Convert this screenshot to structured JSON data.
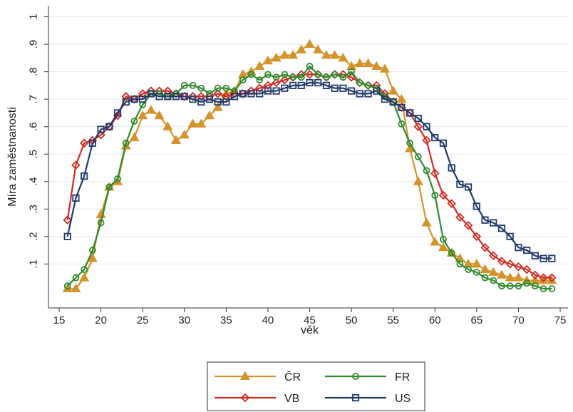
{
  "chart_data": {
    "type": "line",
    "xlabel": "věk",
    "ylabel": "Míra zaměstnanosti",
    "xlim": [
      15,
      75
    ],
    "ylim": [
      0,
      1
    ],
    "x_ticks": [
      "15",
      "20",
      "25",
      "30",
      "35",
      "40",
      "45",
      "50",
      "55",
      "60",
      "65",
      "70",
      "75"
    ],
    "y_ticks": [
      ".1",
      ".2",
      ".3",
      ".4",
      ".5",
      ".6",
      ".7",
      ".8",
      ".9",
      "1"
    ],
    "grid": true,
    "legend_position": "bottom",
    "series": [
      {
        "name": "ČR",
        "color": "#d4922a",
        "marker": "triangle",
        "x": [
          16,
          17,
          18,
          19,
          20,
          21,
          22,
          23,
          24,
          25,
          26,
          27,
          28,
          29,
          30,
          31,
          32,
          33,
          34,
          35,
          36,
          37,
          38,
          39,
          40,
          41,
          42,
          43,
          44,
          45,
          46,
          47,
          48,
          49,
          50,
          51,
          52,
          53,
          54,
          55,
          56,
          57,
          58,
          59,
          60,
          61,
          62,
          63,
          64,
          65,
          66,
          67,
          68,
          69,
          70,
          71,
          72,
          73,
          74
        ],
        "values": [
          0.01,
          0.01,
          0.05,
          0.12,
          0.28,
          0.38,
          0.4,
          0.53,
          0.56,
          0.64,
          0.66,
          0.64,
          0.6,
          0.55,
          0.57,
          0.61,
          0.61,
          0.64,
          0.67,
          0.72,
          0.73,
          0.79,
          0.8,
          0.82,
          0.84,
          0.85,
          0.86,
          0.86,
          0.88,
          0.9,
          0.88,
          0.86,
          0.86,
          0.85,
          0.82,
          0.83,
          0.83,
          0.82,
          0.81,
          0.73,
          0.7,
          0.52,
          0.4,
          0.25,
          0.18,
          0.16,
          0.14,
          0.12,
          0.1,
          0.1,
          0.08,
          0.07,
          0.06,
          0.05,
          0.05,
          0.04,
          0.04,
          0.04,
          0.04
        ]
      },
      {
        "name": "VB",
        "color": "#cf2c24",
        "marker": "diamond",
        "x": [
          16,
          17,
          18,
          19,
          20,
          21,
          22,
          23,
          24,
          25,
          26,
          27,
          28,
          29,
          30,
          31,
          32,
          33,
          34,
          35,
          36,
          37,
          38,
          39,
          40,
          41,
          42,
          43,
          44,
          45,
          46,
          47,
          48,
          49,
          50,
          51,
          52,
          53,
          54,
          55,
          56,
          57,
          58,
          59,
          60,
          61,
          62,
          63,
          64,
          65,
          66,
          67,
          68,
          69,
          70,
          71,
          72,
          73,
          74
        ],
        "values": [
          0.26,
          0.46,
          0.54,
          0.55,
          0.57,
          0.6,
          0.64,
          0.71,
          0.7,
          0.72,
          0.73,
          0.73,
          0.73,
          0.72,
          0.71,
          0.71,
          0.71,
          0.71,
          0.72,
          0.71,
          0.72,
          0.72,
          0.73,
          0.74,
          0.75,
          0.76,
          0.77,
          0.78,
          0.79,
          0.79,
          0.79,
          0.78,
          0.79,
          0.79,
          0.78,
          0.76,
          0.75,
          0.75,
          0.72,
          0.69,
          0.67,
          0.65,
          0.6,
          0.55,
          0.43,
          0.35,
          0.32,
          0.27,
          0.24,
          0.2,
          0.16,
          0.13,
          0.11,
          0.1,
          0.09,
          0.08,
          0.06,
          0.05,
          0.05
        ]
      },
      {
        "name": "FR",
        "color": "#2e8b2e",
        "marker": "circle",
        "x": [
          16,
          17,
          18,
          19,
          20,
          21,
          22,
          23,
          24,
          25,
          26,
          27,
          28,
          29,
          30,
          31,
          32,
          33,
          34,
          35,
          36,
          37,
          38,
          39,
          40,
          41,
          42,
          43,
          44,
          45,
          46,
          47,
          48,
          49,
          50,
          51,
          52,
          53,
          54,
          55,
          56,
          57,
          58,
          59,
          60,
          61,
          62,
          63,
          64,
          65,
          66,
          67,
          68,
          69,
          70,
          71,
          72,
          73,
          74
        ],
        "values": [
          0.02,
          0.05,
          0.08,
          0.15,
          0.25,
          0.38,
          0.41,
          0.54,
          0.62,
          0.68,
          0.72,
          0.72,
          0.71,
          0.72,
          0.75,
          0.75,
          0.74,
          0.72,
          0.74,
          0.74,
          0.73,
          0.77,
          0.79,
          0.77,
          0.79,
          0.78,
          0.79,
          0.78,
          0.78,
          0.82,
          0.79,
          0.78,
          0.79,
          0.78,
          0.8,
          0.76,
          0.75,
          0.74,
          0.71,
          0.69,
          0.61,
          0.54,
          0.49,
          0.44,
          0.35,
          0.19,
          0.14,
          0.1,
          0.08,
          0.07,
          0.05,
          0.04,
          0.02,
          0.02,
          0.02,
          0.03,
          0.02,
          0.01,
          0.01
        ]
      },
      {
        "name": "US",
        "color": "#1f3a6b",
        "marker": "square",
        "x": [
          16,
          17,
          18,
          19,
          20,
          21,
          22,
          23,
          24,
          25,
          26,
          27,
          28,
          29,
          30,
          31,
          32,
          33,
          34,
          35,
          36,
          37,
          38,
          39,
          40,
          41,
          42,
          43,
          44,
          45,
          46,
          47,
          48,
          49,
          50,
          51,
          52,
          53,
          54,
          55,
          56,
          57,
          58,
          59,
          60,
          61,
          62,
          63,
          64,
          65,
          66,
          67,
          68,
          69,
          70,
          71,
          72,
          73,
          74
        ],
        "values": [
          0.2,
          0.34,
          0.42,
          0.54,
          0.59,
          0.6,
          0.65,
          0.69,
          0.7,
          0.7,
          0.72,
          0.71,
          0.71,
          0.71,
          0.71,
          0.7,
          0.69,
          0.7,
          0.69,
          0.69,
          0.71,
          0.72,
          0.72,
          0.72,
          0.73,
          0.73,
          0.74,
          0.75,
          0.75,
          0.76,
          0.76,
          0.75,
          0.74,
          0.74,
          0.73,
          0.72,
          0.72,
          0.73,
          0.7,
          0.69,
          0.67,
          0.65,
          0.63,
          0.6,
          0.56,
          0.54,
          0.45,
          0.39,
          0.38,
          0.31,
          0.26,
          0.25,
          0.23,
          0.2,
          0.16,
          0.15,
          0.13,
          0.12,
          0.12
        ]
      }
    ]
  }
}
